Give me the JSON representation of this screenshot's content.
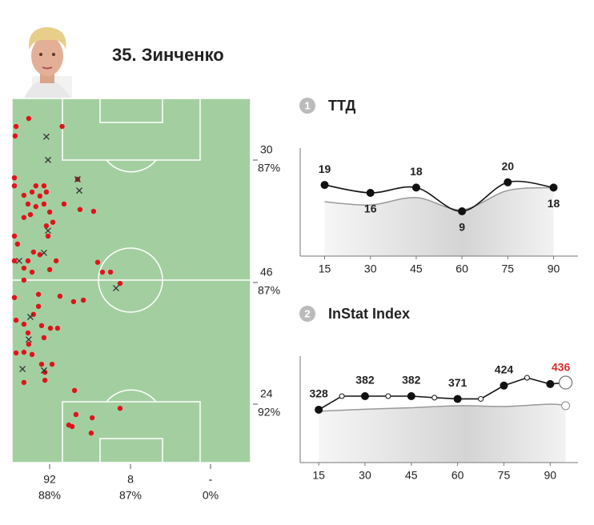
{
  "header": {
    "title": "35. Зинченко"
  },
  "pitch": {
    "xlim": [
      0,
      100
    ],
    "ylim": [
      0,
      100
    ],
    "passes": {
      "x": [
        7,
        1.7,
        21,
        1.3,
        1,
        1,
        10,
        13.4,
        27.5,
        5,
        8.4,
        11.7,
        14.4,
        6.7,
        10,
        13.4,
        21.8,
        28.5,
        34.2,
        7.7,
        15.8,
        5,
        17.1,
        14.4,
        15.1,
        1,
        2.3,
        9,
        11.7,
        1,
        6.7,
        18.5,
        5,
        15.8,
        8.4,
        5,
        35.9,
        37.9,
        41.3,
        45.3,
        20.1,
        1,
        11.1,
        11.1,
        25.8,
        29.9,
        9,
        1.7,
        5,
        12.4,
        16.1,
        19.1,
        6.7,
        13.4,
        7,
        5,
        1.7,
        8.4,
        12.4,
        16.8,
        13.8,
        5,
        13.8,
        26.2,
        26.8,
        33.6,
        23.8,
        25.2,
        33.2,
        45.3
      ],
      "y": [
        5.5,
        7.7,
        7.7,
        10.3,
        21.8,
        24,
        24,
        24,
        22.2,
        26.6,
        25.7,
        26.8,
        25.7,
        29,
        29.7,
        29,
        29,
        30.5,
        31,
        31.9,
        31.2,
        32.7,
        34,
        35,
        37.8,
        37.8,
        40,
        42.2,
        42.9,
        44.6,
        44.6,
        44.6,
        46.6,
        47,
        47.7,
        49.9,
        45,
        47.7,
        47.7,
        50.8,
        54.3,
        54.7,
        53.8,
        57.1,
        55.8,
        55.4,
        59.3,
        60.9,
        62,
        62.4,
        63.1,
        63.1,
        64.4,
        65.7,
        67.5,
        69.7,
        69.9,
        70.3,
        73,
        73,
        75.2,
        78,
        77.4,
        80.2,
        86.8,
        87.7,
        89.7,
        90.1,
        91.9,
        85.1
      ],
      "color": "#e0131a"
    },
    "crosses": {
      "x": [
        14.4,
        15.1,
        27.5,
        28.2,
        15.1,
        13.4,
        3,
        43.6,
        7.7,
        7,
        4.4,
        13.4
      ],
      "y": [
        10.5,
        16.9,
        22.2,
        25.3,
        36.3,
        42.4,
        44.6,
        52.1,
        60,
        66.2,
        74.3,
        74.7
      ],
      "color": "#333333"
    },
    "zones_right": [
      [
        "30",
        "87%"
      ],
      [
        "46",
        "87%"
      ],
      [
        "24",
        "92%"
      ]
    ],
    "zones_bottom": [
      [
        "92",
        "88%"
      ],
      [
        "8",
        "87%"
      ],
      [
        "-",
        "0%"
      ]
    ]
  },
  "chart_data": [
    {
      "type": "line",
      "number": "1",
      "title": "ТТД",
      "x": [
        15,
        30,
        45,
        60,
        75,
        90
      ],
      "xlim": [
        7,
        98
      ],
      "xticks": [
        15,
        30,
        45,
        60,
        75,
        90
      ],
      "ylim": [
        -8,
        33
      ],
      "series": [
        {
          "color": "#111111",
          "values": [
            19,
            16,
            18,
            9,
            20,
            18
          ],
          "x": [
            15,
            30,
            45,
            60,
            75,
            90
          ]
        },
        {
          "color": "#999999",
          "values": [
            12.6,
            11.4,
            14.2,
            9.6,
            16.9,
            18
          ],
          "x": [
            15,
            30,
            45,
            60,
            75,
            90
          ],
          "area": true
        }
      ]
    },
    {
      "type": "line",
      "number": "2",
      "title": "InStat Index",
      "xlim": [
        9,
        99
      ],
      "xticks": [
        15,
        30,
        45,
        60,
        75,
        90
      ],
      "ylim": [
        118,
        541
      ],
      "series": [
        {
          "color": "#111111",
          "x": [
            15,
            22.5,
            30,
            37.5,
            45,
            52.5,
            60,
            67.5,
            75,
            82.5,
            90
          ],
          "values": [
            328,
            382,
            382,
            382,
            382,
            376,
            371,
            371,
            424,
            455,
            430
          ],
          "value_labels": [
            "328",
            null,
            "382",
            null,
            "382",
            null,
            "371",
            null,
            "424",
            null,
            null
          ]
        },
        {
          "color": "#999999",
          "x": [
            15,
            30,
            45,
            60,
            75,
            90,
            95
          ],
          "values": [
            322,
            330,
            336,
            344,
            341,
            350,
            344
          ],
          "area": true
        }
      ],
      "total": {
        "x": 95,
        "value": 436,
        "color": "#d62b2b"
      }
    }
  ]
}
